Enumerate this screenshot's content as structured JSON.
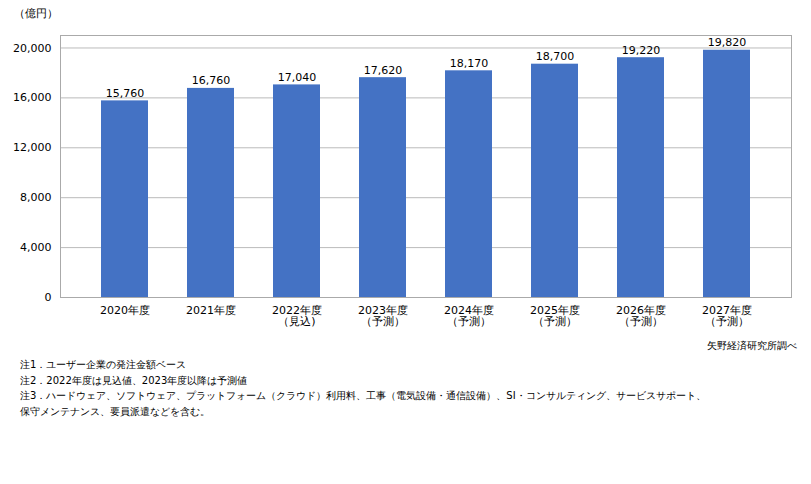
{
  "chart_data": {
    "type": "bar",
    "categories": [
      "2020年度",
      "2021年度",
      "2022年度\n（見込)",
      "2023年度\n（予測）",
      "2024年度\n（予測）",
      "2025年度\n（予測）",
      "2026年度\n（予測）",
      "2027年度\n（予測）"
    ],
    "values": [
      15760,
      16760,
      17040,
      17620,
      18170,
      18700,
      19220,
      19820
    ],
    "value_labels": [
      "15,760",
      "16,760",
      "17,040",
      "17,620",
      "18,170",
      "18,700",
      "19,220",
      "19,820"
    ],
    "data_labels": true,
    "color": "#4472C4",
    "ylabel": "（億円）",
    "ylim": [
      0,
      21000
    ],
    "yticks": [
      0,
      {
        "value": 4000,
        "label": "4,000"
      },
      {
        "value": 8000,
        "label": "8,000"
      },
      {
        "value": 12000,
        "label": "12,000"
      },
      {
        "value": 16000,
        "label": "16,000"
      },
      {
        "value": 20000,
        "label": "20,000"
      }
    ],
    "grid": true,
    "source": "矢野経済研究所調べ",
    "notes": [
      "注1．ユーザー企業の発注金額ベース",
      "注2．2022年度は見込値、2023年度以降は予測値",
      "注3．ハードウェア、ソフトウェア、プラットフォーム（クラウド）利用料、工事（電気設備・通信設備）、SI・コンサルティング、サービスサポート、",
      "保守メンテナンス、要員派遣などを含む。"
    ]
  }
}
